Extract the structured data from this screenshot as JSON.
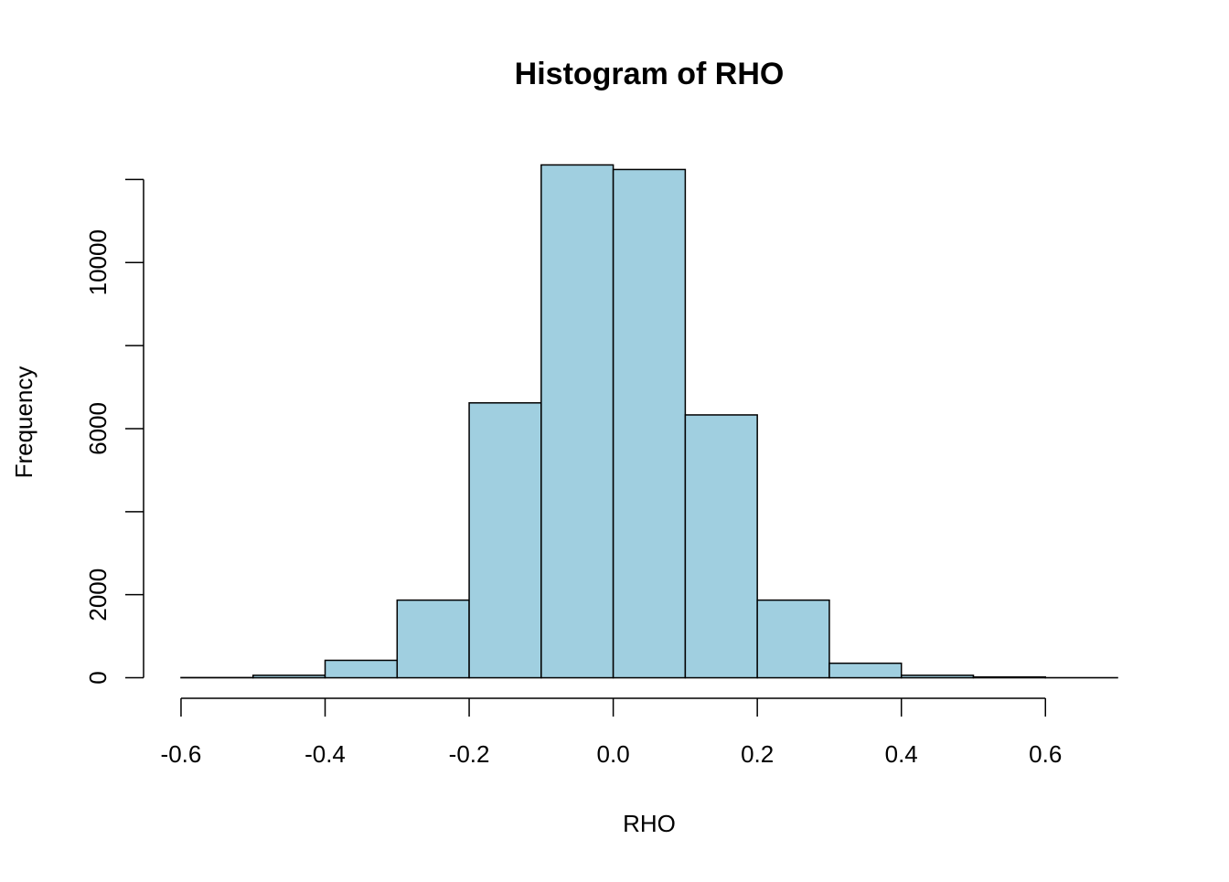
{
  "chart_data": {
    "type": "histogram",
    "title": "Histogram of RHO",
    "x_label": "RHO",
    "y_label": "Frequency",
    "bins": [
      -0.6,
      -0.5,
      -0.4,
      -0.3,
      -0.2,
      -0.1,
      0,
      0.1,
      0.2,
      0.3,
      0.4,
      0.5,
      0.6,
      0.7
    ],
    "values": [
      5,
      60,
      420,
      1870,
      6620,
      12350,
      12240,
      6330,
      1870,
      350,
      60,
      20,
      2
    ],
    "color": "#a0cfe0",
    "xlim": [
      -0.652,
      0.752
    ],
    "xticks": [
      -0.6,
      -0.4,
      -0.2,
      {
        "value": 0,
        "label": "0.0"
      },
      0.2,
      0.4,
      0.6
    ],
    "ylim": [
      -494,
      12844
    ],
    "yticks": [
      0,
      2000,
      {
        "value": 4000,
        "label": null
      },
      6000,
      {
        "value": 8000,
        "label": null
      },
      10000,
      {
        "value": 12000,
        "label": null
      }
    ]
  }
}
